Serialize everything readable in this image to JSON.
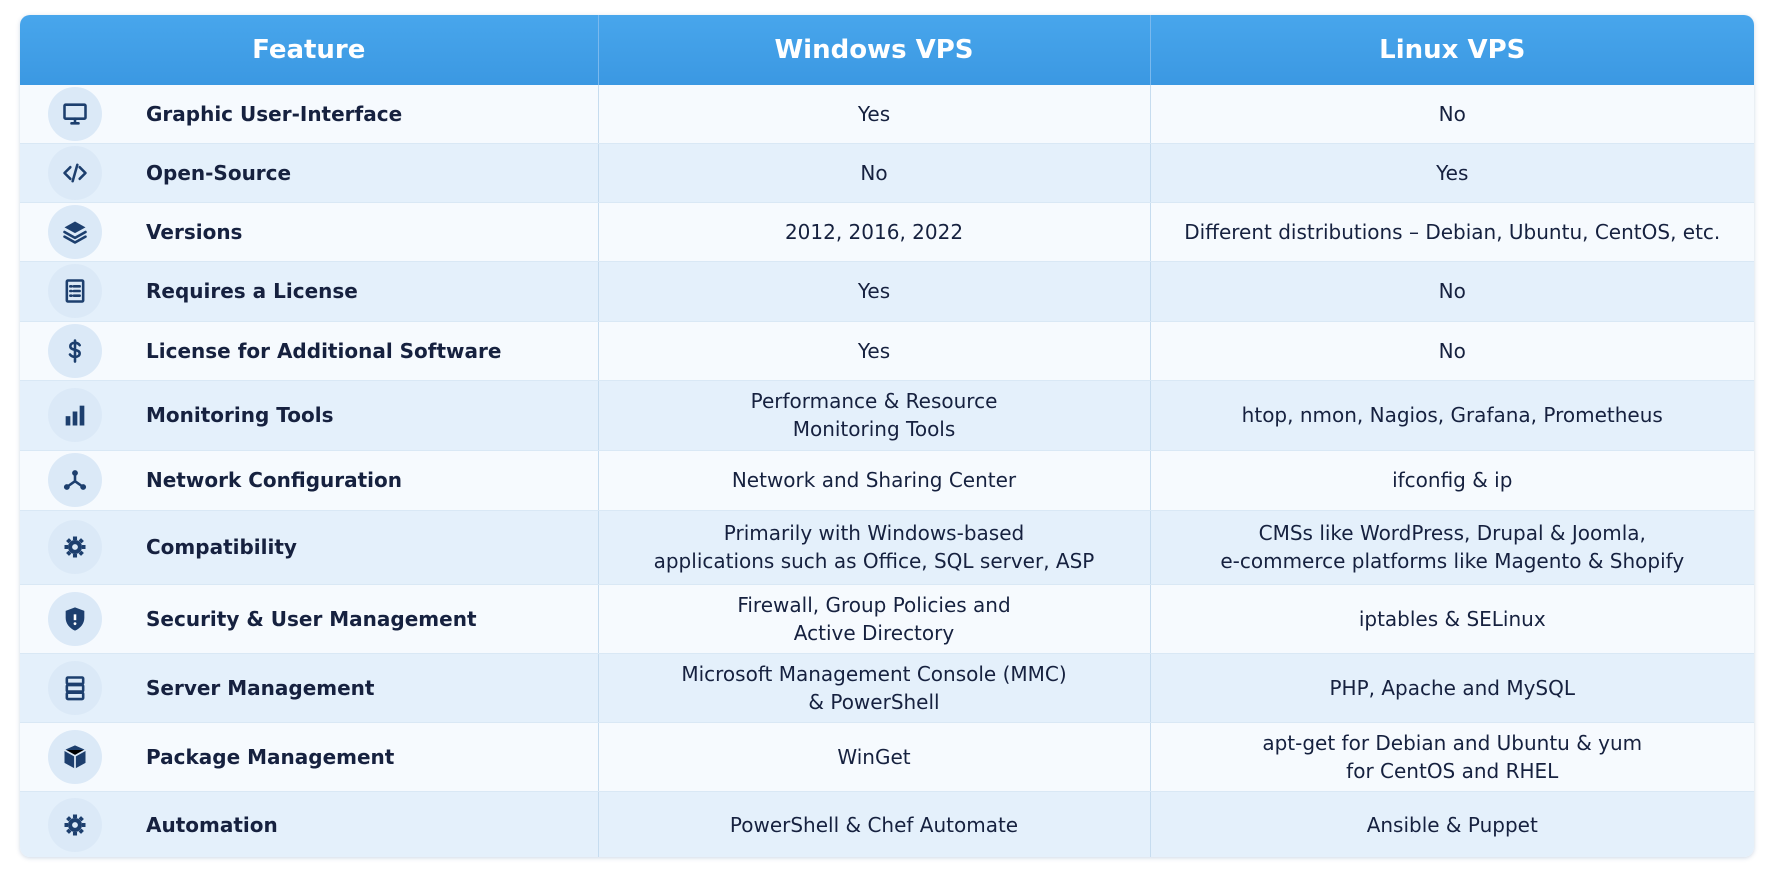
{
  "table": {
    "headers": [
      "Feature",
      "Windows VPS",
      "Linux VPS"
    ],
    "rows": [
      {
        "feature": "Graphic User-Interface",
        "windows": [
          "Yes"
        ],
        "linux": [
          "No"
        ]
      },
      {
        "feature": "Open-Source",
        "windows": [
          "No"
        ],
        "linux": [
          "Yes"
        ]
      },
      {
        "feature": "Versions",
        "windows": [
          "2012, 2016, 2022"
        ],
        "linux": [
          "Different distributions – Debian, Ubuntu, CentOS, etc."
        ]
      },
      {
        "feature": "Requires a License",
        "windows": [
          "Yes"
        ],
        "linux": [
          "No"
        ]
      },
      {
        "feature": "License for Additional Software",
        "windows": [
          "Yes"
        ],
        "linux": [
          "No"
        ]
      },
      {
        "feature": "Monitoring Tools",
        "windows": [
          "Performance & Resource",
          "Monitoring Tools"
        ],
        "linux": [
          "htop, nmon, Nagios, Grafana, Prometheus"
        ]
      },
      {
        "feature": "Network Configuration",
        "windows": [
          "Network and Sharing Center"
        ],
        "linux": [
          "ifconfig & ip"
        ]
      },
      {
        "feature": "Compatibility",
        "windows": [
          "Primarily with Windows-based",
          "applications such as Office, SQL server, ASP"
        ],
        "linux": [
          "CMSs like WordPress, Drupal & Joomla,",
          "e-commerce platforms like Magento & Shopify"
        ]
      },
      {
        "feature": "Security & User Management",
        "windows": [
          "Firewall, Group Policies and",
          "Active Directory"
        ],
        "linux": [
          "iptables & SELinux"
        ]
      },
      {
        "feature": "Server Management",
        "windows": [
          "Microsoft Management Console (MMC)",
          "& PowerShell"
        ],
        "linux": [
          "PHP, Apache and MySQL"
        ]
      },
      {
        "feature": "Package Management",
        "windows": [
          "WinGet"
        ],
        "linux": [
          "apt-get for Debian and Ubuntu & yum",
          "for CentOS and RHEL"
        ]
      },
      {
        "feature": "Automation",
        "windows": [
          "PowerShell & Chef Automate"
        ],
        "linux": [
          "Ansible & Puppet"
        ]
      }
    ]
  }
}
